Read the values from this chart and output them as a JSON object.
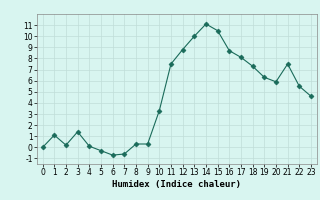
{
  "x": [
    0,
    1,
    2,
    3,
    4,
    5,
    6,
    7,
    8,
    9,
    10,
    11,
    12,
    13,
    14,
    15,
    16,
    17,
    18,
    19,
    20,
    21,
    22,
    23
  ],
  "y": [
    0.0,
    1.1,
    0.2,
    1.4,
    0.1,
    -0.3,
    -0.7,
    -0.6,
    0.3,
    0.3,
    3.3,
    7.5,
    8.8,
    10.0,
    11.1,
    10.5,
    8.7,
    8.1,
    7.3,
    6.3,
    5.9,
    7.5,
    5.5,
    4.6
  ],
  "xlabel": "Humidex (Indice chaleur)",
  "xlim": [
    -0.5,
    23.5
  ],
  "ylim": [
    -1.5,
    12
  ],
  "yticks": [
    -1,
    0,
    1,
    2,
    3,
    4,
    5,
    6,
    7,
    8,
    9,
    10,
    11
  ],
  "xticks": [
    0,
    1,
    2,
    3,
    4,
    5,
    6,
    7,
    8,
    9,
    10,
    11,
    12,
    13,
    14,
    15,
    16,
    17,
    18,
    19,
    20,
    21,
    22,
    23
  ],
  "line_color": "#1a6b5a",
  "marker": "D",
  "marker_size": 2.5,
  "bg_color": "#d8f5f0",
  "grid_color": "#c0ddd8",
  "label_fontsize": 6.5,
  "tick_fontsize": 5.5
}
